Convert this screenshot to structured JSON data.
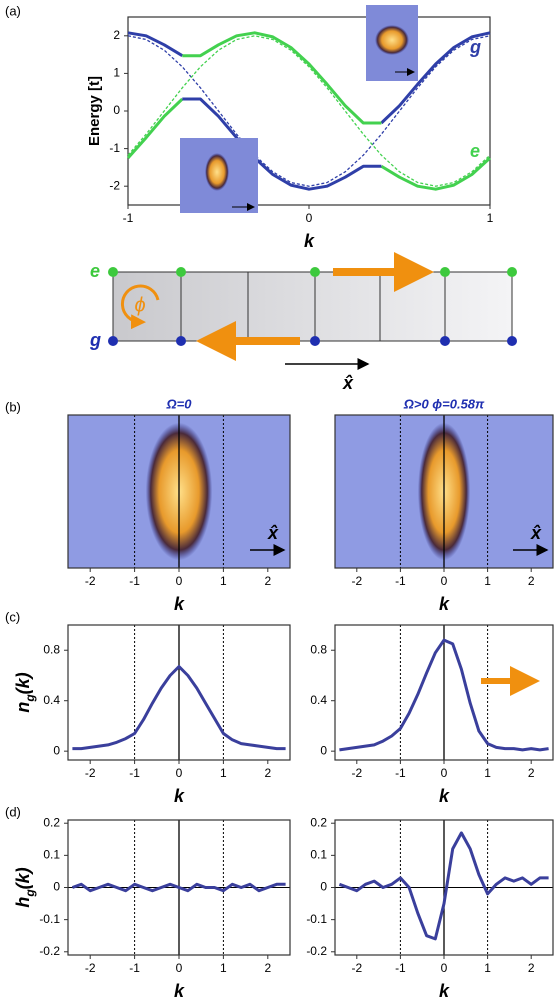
{
  "chart_data": [
    {
      "type": "line",
      "panel_label": "(a)",
      "xlabel": "k",
      "ylabel": "Energy [t]",
      "x": [
        -1,
        -0.9,
        -0.8,
        -0.7,
        -0.6,
        -0.5,
        -0.4,
        -0.3,
        -0.2,
        -0.1,
        0,
        0.1,
        0.2,
        0.3,
        0.4,
        0.5,
        0.6,
        0.7,
        0.8,
        0.9,
        1
      ],
      "xlim": [
        -1,
        1
      ],
      "xticks": [
        -1,
        0,
        1
      ],
      "ylim": [
        -2.5,
        2.5
      ],
      "yticks": [
        -2,
        -1,
        0,
        1,
        2
      ],
      "series": [
        {
          "color": "#2f3fa8",
          "dashed": true,
          "values": [
            2,
            1.902,
            1.618,
            1.176,
            0.618,
            0,
            -0.618,
            -1.176,
            -1.618,
            -1.902,
            -2,
            -1.902,
            -1.618,
            -1.176,
            -0.618,
            0,
            0.618,
            1.176,
            1.618,
            1.902,
            2
          ]
        },
        {
          "color": "#43d14f",
          "dashed": true,
          "values": [
            -1.176,
            -0.618,
            0,
            0.618,
            1.176,
            1.618,
            1.902,
            2,
            1.902,
            1.618,
            1.176,
            0.618,
            0,
            -0.618,
            -1.176,
            -1.618,
            -1.902,
            -2,
            -1.902,
            -1.618,
            -1.176
          ]
        },
        {
          "color": "#2f3fa8",
          "values": [
            2.08,
            2.0,
            1.76,
            1.47,
            null,
            null,
            null,
            null,
            null,
            null,
            null,
            null,
            null,
            null,
            -0.32,
            0.14,
            0.71,
            1.25,
            1.69,
            1.97,
            2.08
          ]
        },
        {
          "color": "#43d14f",
          "values": [
            null,
            null,
            null,
            1.47,
            1.47,
            1.76,
            2.0,
            2.08,
            1.97,
            1.69,
            1.25,
            0.71,
            0.14,
            -0.32,
            -0.32,
            null,
            null,
            null,
            null,
            null,
            null
          ]
        },
        {
          "color": "#43d14f",
          "values": [
            -1.25,
            -0.71,
            -0.14,
            0.32,
            null,
            null,
            null,
            null,
            null,
            null,
            null,
            null,
            null,
            null,
            -1.47,
            -1.76,
            -2.0,
            -2.08,
            -1.97,
            -1.69,
            -1.25
          ]
        },
        {
          "color": "#2f3fa8",
          "values": [
            null,
            null,
            null,
            0.32,
            0.32,
            -0.14,
            -0.71,
            -1.25,
            -1.69,
            -1.97,
            -2.08,
            -2.0,
            -1.76,
            -1.47,
            -1.47,
            null,
            null,
            null,
            null,
            null,
            null
          ]
        }
      ],
      "annotations": [
        {
          "text": "g",
          "color": "#2f3fa8"
        },
        {
          "text": "e",
          "color": "#43d14f"
        }
      ]
    },
    {
      "type": "image",
      "panel_label": "(b)",
      "title": "Ω=0",
      "xlabel": "k",
      "xlim": [
        -2.5,
        2.5
      ],
      "xticks": [
        -2,
        -1,
        0,
        1,
        2
      ],
      "reference_lines": [
        -1,
        0,
        1
      ],
      "annotations": [
        {
          "text": "x̂",
          "color": "#000000"
        }
      ]
    },
    {
      "type": "image",
      "title": "Ω>0  ϕ=0.58π",
      "xlabel": "k",
      "xlim": [
        -2.5,
        2.5
      ],
      "xticks": [
        -2,
        -1,
        0,
        1,
        2
      ],
      "reference_lines": [
        -1,
        0,
        1
      ],
      "annotations": [
        {
          "text": "x̂",
          "color": "#000000"
        }
      ]
    },
    {
      "type": "line",
      "panel_label": "(c)",
      "xlabel": "k",
      "ylabel": [
        "n",
        "g",
        "(k)"
      ],
      "x": [
        -2.4,
        -2.2,
        -2.0,
        -1.8,
        -1.6,
        -1.4,
        -1.2,
        -1.0,
        -0.8,
        -0.6,
        -0.4,
        -0.2,
        0,
        0.2,
        0.4,
        0.6,
        0.8,
        1.0,
        1.2,
        1.4,
        1.6,
        1.8,
        2.0,
        2.2,
        2.4
      ],
      "xlim": [
        -2.5,
        2.5
      ],
      "xticks": [
        -2,
        -1,
        0,
        1,
        2
      ],
      "ylim": [
        -0.07,
        1.0
      ],
      "yticks": [
        0,
        0.4,
        0.8
      ],
      "reference_lines": [
        -1,
        0,
        1
      ],
      "series": [
        {
          "color": "#3a3f9c",
          "values": [
            0.02,
            0.02,
            0.03,
            0.04,
            0.05,
            0.07,
            0.1,
            0.14,
            0.25,
            0.38,
            0.5,
            0.6,
            0.67,
            0.6,
            0.5,
            0.38,
            0.26,
            0.14,
            0.09,
            0.06,
            0.05,
            0.04,
            0.03,
            0.02,
            0.02
          ]
        }
      ]
    },
    {
      "type": "line",
      "xlabel": "k",
      "x": [
        -2.4,
        -2.2,
        -2.0,
        -1.8,
        -1.6,
        -1.4,
        -1.2,
        -1.0,
        -0.8,
        -0.6,
        -0.4,
        -0.2,
        0,
        0.2,
        0.4,
        0.6,
        0.8,
        1.0,
        1.2,
        1.4,
        1.6,
        1.8,
        2.0,
        2.2,
        2.4
      ],
      "xlim": [
        -2.5,
        2.5
      ],
      "xticks": [
        -2,
        -1,
        0,
        1,
        2
      ],
      "ylim": [
        -0.07,
        1.0
      ],
      "yticks": [
        0,
        0.4,
        0.8
      ],
      "reference_lines": [
        -1,
        0,
        1
      ],
      "series": [
        {
          "color": "#3a3f9c",
          "values": [
            0.01,
            0.02,
            0.03,
            0.04,
            0.05,
            0.08,
            0.12,
            0.18,
            0.3,
            0.45,
            0.62,
            0.78,
            0.88,
            0.85,
            0.65,
            0.38,
            0.16,
            0.06,
            0.03,
            0.02,
            0.02,
            0.01,
            0.02,
            0.01,
            0.02
          ]
        }
      ]
    },
    {
      "type": "line",
      "panel_label": "(d)",
      "xlabel": "k",
      "ylabel": [
        "h",
        "g",
        "(k)"
      ],
      "x": [
        -2.4,
        -2.2,
        -2.0,
        -1.8,
        -1.6,
        -1.4,
        -1.2,
        -1.0,
        -0.8,
        -0.6,
        -0.4,
        -0.2,
        0,
        0.2,
        0.4,
        0.6,
        0.8,
        1.0,
        1.2,
        1.4,
        1.6,
        1.8,
        2.0,
        2.2,
        2.4
      ],
      "xlim": [
        -2.5,
        2.5
      ],
      "xticks": [
        -2,
        -1,
        0,
        1,
        2
      ],
      "ylim": [
        -0.21,
        0.21
      ],
      "yticks": [
        -0.2,
        -0.1,
        0,
        0.1,
        0.2
      ],
      "reference_lines": [
        -1,
        0,
        1
      ],
      "series": [
        {
          "color": "#3a3f9c",
          "values": [
            0,
            0.01,
            -0.01,
            0,
            0.01,
            0,
            -0.01,
            0.01,
            0,
            -0.01,
            0,
            0.01,
            0,
            -0.01,
            0.01,
            0,
            0,
            -0.01,
            0.01,
            0,
            0.01,
            -0.01,
            0,
            0.01,
            0.01
          ]
        }
      ]
    },
    {
      "type": "line",
      "xlabel": "k",
      "x": [
        -2.4,
        -2.2,
        -2.0,
        -1.8,
        -1.6,
        -1.4,
        -1.2,
        -1.0,
        -0.8,
        -0.6,
        -0.4,
        -0.2,
        0,
        0.2,
        0.4,
        0.6,
        0.8,
        1.0,
        1.2,
        1.4,
        1.6,
        1.8,
        2.0,
        2.2,
        2.4
      ],
      "xlim": [
        -2.5,
        2.5
      ],
      "xticks": [
        -2,
        -1,
        0,
        1,
        2
      ],
      "ylim": [
        -0.21,
        0.21
      ],
      "yticks": [
        -0.2,
        -0.1,
        0,
        0.1,
        0.2
      ],
      "reference_lines": [
        -1,
        0,
        1
      ],
      "series": [
        {
          "color": "#3a3f9c",
          "values": [
            0.01,
            0,
            -0.01,
            0.01,
            0.02,
            0,
            0.01,
            0.03,
            0.0,
            -0.08,
            -0.15,
            -0.16,
            -0.05,
            0.12,
            0.17,
            0.12,
            0.04,
            -0.02,
            0.01,
            0.03,
            0.02,
            0.03,
            0.01,
            0.03,
            0.03
          ]
        }
      ]
    }
  ],
  "lattice_diagram": {
    "upper_label": "e",
    "lower_label": "g",
    "phase_label": "ϕ",
    "axis_label": "x̂"
  }
}
